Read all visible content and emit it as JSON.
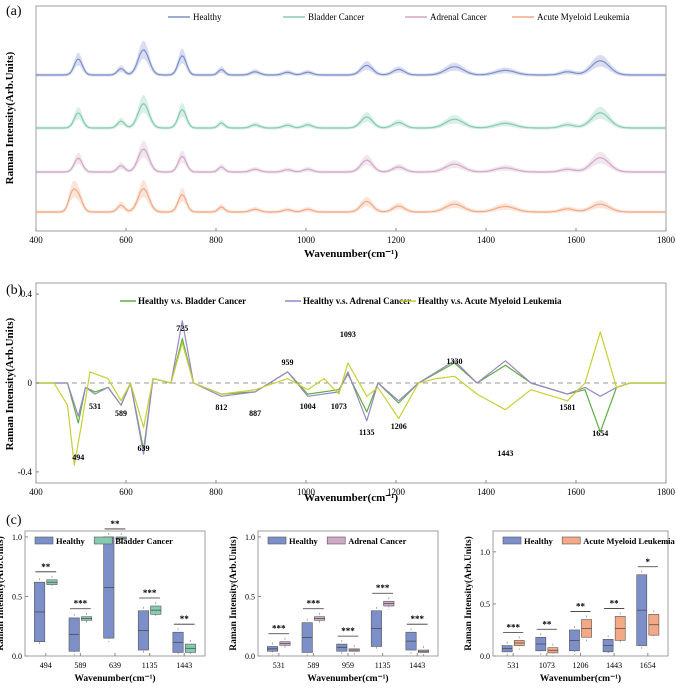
{
  "panel_labels": {
    "a": "(a)",
    "b": "(b)",
    "c": "(c)"
  },
  "colors": {
    "healthy": "#7d8fc9",
    "bladder": "#86cbb0",
    "adrenal": "#cfa9c6",
    "aml": "#f3a985",
    "v_bladder": "#5cae3e",
    "v_adrenal": "#9a86c4",
    "v_aml": "#c9cf35",
    "zero_line": "#999999"
  },
  "chart_data": [
    {
      "id": "a",
      "type": "line",
      "title": "",
      "xlabel": "Wavenumber(cm⁻¹)",
      "ylabel": "Raman Intensity(Arb.Units)",
      "xlim": [
        400,
        1800
      ],
      "xticks": [
        400,
        600,
        800,
        1000,
        1200,
        1400,
        1600,
        1800
      ],
      "stacked_offsets": true,
      "legend_position": "top",
      "series": [
        {
          "name": "Healthy",
          "color": "#7d8fc9",
          "baseline": 0.0,
          "peaks": [
            [
              494,
              0.35
            ],
            [
              589,
              0.14
            ],
            [
              639,
              0.55
            ],
            [
              725,
              0.42
            ],
            [
              812,
              0.12
            ],
            [
              887,
              0.07
            ],
            [
              959,
              0.06
            ],
            [
              1004,
              0.06
            ],
            [
              1135,
              0.21
            ],
            [
              1206,
              0.12
            ],
            [
              1330,
              0.18
            ],
            [
              1443,
              0.1
            ],
            [
              1581,
              0.07
            ],
            [
              1654,
              0.31
            ]
          ]
        },
        {
          "name": "Bladder Cancer",
          "color": "#86cbb0",
          "baseline": 0.0,
          "peaks": [
            [
              494,
              0.33
            ],
            [
              589,
              0.15
            ],
            [
              639,
              0.53
            ],
            [
              725,
              0.4
            ],
            [
              812,
              0.11
            ],
            [
              887,
              0.07
            ],
            [
              959,
              0.06
            ],
            [
              1004,
              0.07
            ],
            [
              1135,
              0.24
            ],
            [
              1206,
              0.12
            ],
            [
              1330,
              0.19
            ],
            [
              1443,
              0.1
            ],
            [
              1581,
              0.07
            ],
            [
              1654,
              0.33
            ]
          ]
        },
        {
          "name": "Adrenal Cancer",
          "color": "#cfa9c6",
          "baseline": 0.0,
          "peaks": [
            [
              494,
              0.3
            ],
            [
              589,
              0.14
            ],
            [
              639,
              0.5
            ],
            [
              725,
              0.34
            ],
            [
              812,
              0.11
            ],
            [
              887,
              0.06
            ],
            [
              959,
              0.05
            ],
            [
              1004,
              0.06
            ],
            [
              1135,
              0.26
            ],
            [
              1206,
              0.11
            ],
            [
              1330,
              0.17
            ],
            [
              1443,
              0.09
            ],
            [
              1581,
              0.06
            ],
            [
              1654,
              0.31
            ]
          ]
        },
        {
          "name": "Acute Myeloid Leukemia",
          "color": "#f3a985",
          "baseline": 0.0,
          "peaks": [
            [
              480,
              0.36
            ],
            [
              494,
              0.34
            ],
            [
              589,
              0.15
            ],
            [
              639,
              0.51
            ],
            [
              725,
              0.38
            ],
            [
              812,
              0.11
            ],
            [
              887,
              0.06
            ],
            [
              959,
              0.05
            ],
            [
              1004,
              0.06
            ],
            [
              1135,
              0.23
            ],
            [
              1206,
              0.13
            ],
            [
              1330,
              0.17
            ],
            [
              1443,
              0.12
            ],
            [
              1581,
              0.07
            ],
            [
              1654,
              0.17
            ]
          ]
        }
      ]
    },
    {
      "id": "b",
      "type": "line",
      "title": "",
      "xlabel": "Wavenumber(cm⁻¹)",
      "ylabel": "Raman Intensity(Arb.Units)",
      "xlim": [
        400,
        1800
      ],
      "ylim": [
        -0.45,
        0.45
      ],
      "xticks": [
        400,
        600,
        800,
        1000,
        1200,
        1400,
        1600,
        1800
      ],
      "yticks": [
        -0.4,
        0,
        0.4
      ],
      "ytick_labels": [
        "-0.4",
        "0",
        "0.4"
      ],
      "legend_position": "top",
      "series": [
        {
          "name": "Healthy v.s. Bladder Cancer",
          "color": "#5cae3e",
          "points": [
            [
              400,
              0.0
            ],
            [
              470,
              0.0
            ],
            [
              494,
              -0.18
            ],
            [
              510,
              -0.02
            ],
            [
              531,
              -0.04
            ],
            [
              560,
              -0.02
            ],
            [
              589,
              -0.1
            ],
            [
              610,
              0.0
            ],
            [
              639,
              -0.3
            ],
            [
              660,
              0.02
            ],
            [
              700,
              0.0
            ],
            [
              725,
              0.2
            ],
            [
              750,
              0.0
            ],
            [
              812,
              -0.05
            ],
            [
              887,
              -0.04
            ],
            [
              959,
              0.05
            ],
            [
              1004,
              -0.05
            ],
            [
              1073,
              -0.03
            ],
            [
              1093,
              0.04
            ],
            [
              1135,
              -0.13
            ],
            [
              1160,
              0.0
            ],
            [
              1206,
              -0.09
            ],
            [
              1250,
              0.0
            ],
            [
              1330,
              0.09
            ],
            [
              1380,
              0.0
            ],
            [
              1443,
              0.08
            ],
            [
              1500,
              0.0
            ],
            [
              1581,
              -0.05
            ],
            [
              1620,
              -0.03
            ],
            [
              1654,
              -0.22
            ],
            [
              1690,
              -0.02
            ],
            [
              1720,
              0.0
            ],
            [
              1800,
              0.0
            ]
          ]
        },
        {
          "name": "Healthy v.s. Adrenal Cancer",
          "color": "#9a86c4",
          "points": [
            [
              400,
              0.0
            ],
            [
              470,
              0.0
            ],
            [
              494,
              -0.15
            ],
            [
              510,
              -0.02
            ],
            [
              531,
              -0.05
            ],
            [
              560,
              -0.02
            ],
            [
              589,
              -0.1
            ],
            [
              610,
              0.0
            ],
            [
              639,
              -0.32
            ],
            [
              660,
              0.02
            ],
            [
              700,
              0.0
            ],
            [
              725,
              0.28
            ],
            [
              750,
              0.0
            ],
            [
              812,
              -0.06
            ],
            [
              887,
              -0.04
            ],
            [
              959,
              0.05
            ],
            [
              1004,
              -0.06
            ],
            [
              1073,
              -0.04
            ],
            [
              1093,
              0.05
            ],
            [
              1135,
              -0.17
            ],
            [
              1160,
              0.0
            ],
            [
              1206,
              -0.08
            ],
            [
              1250,
              0.0
            ],
            [
              1330,
              0.1
            ],
            [
              1380,
              0.0
            ],
            [
              1443,
              0.1
            ],
            [
              1500,
              0.0
            ],
            [
              1581,
              -0.05
            ],
            [
              1620,
              -0.02
            ],
            [
              1654,
              -0.06
            ],
            [
              1690,
              -0.02
            ],
            [
              1720,
              0.0
            ],
            [
              1800,
              0.0
            ]
          ]
        },
        {
          "name": "Healthy v.s. Acute Myeloid Leukemia",
          "color": "#c9cf35",
          "points": [
            [
              400,
              0.0
            ],
            [
              440,
              0.0
            ],
            [
              470,
              -0.1
            ],
            [
              485,
              -0.37
            ],
            [
              500,
              -0.2
            ],
            [
              520,
              0.05
            ],
            [
              560,
              0.02
            ],
            [
              589,
              -0.08
            ],
            [
              610,
              0.0
            ],
            [
              639,
              -0.2
            ],
            [
              660,
              0.02
            ],
            [
              700,
              0.0
            ],
            [
              725,
              0.18
            ],
            [
              750,
              0.0
            ],
            [
              812,
              -0.05
            ],
            [
              887,
              -0.03
            ],
            [
              959,
              0.02
            ],
            [
              1004,
              -0.03
            ],
            [
              1040,
              0.02
            ],
            [
              1073,
              -0.05
            ],
            [
              1093,
              0.09
            ],
            [
              1135,
              -0.06
            ],
            [
              1160,
              -0.02
            ],
            [
              1206,
              -0.16
            ],
            [
              1250,
              0.0
            ],
            [
              1290,
              0.02
            ],
            [
              1330,
              0.03
            ],
            [
              1380,
              -0.05
            ],
            [
              1443,
              -0.12
            ],
            [
              1500,
              -0.03
            ],
            [
              1581,
              -0.08
            ],
            [
              1620,
              0.0
            ],
            [
              1654,
              0.23
            ],
            [
              1690,
              -0.02
            ],
            [
              1720,
              0.0
            ],
            [
              1800,
              0.0
            ]
          ]
        }
      ],
      "annotations": [
        {
          "x": 494,
          "text": "494"
        },
        {
          "x": 531,
          "text": "531"
        },
        {
          "x": 589,
          "text": "589"
        },
        {
          "x": 639,
          "text": "639"
        },
        {
          "x": 725,
          "text": "725"
        },
        {
          "x": 812,
          "text": "812"
        },
        {
          "x": 887,
          "text": "887"
        },
        {
          "x": 959,
          "text": "959"
        },
        {
          "x": 1004,
          "text": "1004"
        },
        {
          "x": 1073,
          "text": "1073"
        },
        {
          "x": 1093,
          "text": "1093"
        },
        {
          "x": 1135,
          "text": "1135"
        },
        {
          "x": 1206,
          "text": "1206"
        },
        {
          "x": 1330,
          "text": "1330"
        },
        {
          "x": 1443,
          "text": "1443"
        },
        {
          "x": 1581,
          "text": "1581"
        },
        {
          "x": 1654,
          "text": "1654"
        }
      ]
    },
    {
      "id": "c1",
      "type": "box",
      "title": "",
      "xlabel": "Wavenumber(cm⁻¹)",
      "ylabel": "Raman Intensity(Arb.Units)",
      "ylim": [
        0,
        1.05
      ],
      "yticks": [
        0.0,
        0.5,
        1.0
      ],
      "ytick_labels": [
        "0.0",
        "0.5",
        "1.0"
      ],
      "categories": [
        "494",
        "589",
        "639",
        "1135",
        "1443"
      ],
      "significance": [
        "**",
        "***",
        "**",
        "***",
        "**"
      ],
      "series": [
        {
          "name": "Healthy",
          "color": "#7d8fc9",
          "boxes": [
            [
              0.12,
              0.62
            ],
            [
              0.04,
              0.32
            ],
            [
              0.15,
              1.0
            ],
            [
              0.05,
              0.38
            ],
            [
              0.03,
              0.2
            ]
          ]
        },
        {
          "name": "Bladder Cancer",
          "color": "#86cbb0",
          "boxes": [
            [
              0.6,
              0.64
            ],
            [
              0.3,
              0.33
            ],
            [
              0.98,
              1.0
            ],
            [
              0.35,
              0.42
            ],
            [
              0.03,
              0.1
            ]
          ]
        }
      ]
    },
    {
      "id": "c2",
      "type": "box",
      "title": "",
      "xlabel": "Wavenumber(cm⁻¹)",
      "ylabel": "Raman Intensity(Arb.Units)",
      "ylim": [
        0,
        1.05
      ],
      "yticks": [
        0.0,
        0.5,
        1.0
      ],
      "ytick_labels": [
        "0.0",
        "0.5",
        "1.0"
      ],
      "categories": [
        "531",
        "589",
        "959",
        "1135",
        "1443"
      ],
      "significance": [
        "***",
        "***",
        "***",
        "***",
        "***"
      ],
      "series": [
        {
          "name": "Healthy",
          "color": "#7d8fc9",
          "boxes": [
            [
              0.04,
              0.08
            ],
            [
              0.03,
              0.28
            ],
            [
              0.04,
              0.1
            ],
            [
              0.08,
              0.38
            ],
            [
              0.05,
              0.2
            ]
          ]
        },
        {
          "name": "Adrenal Cancer",
          "color": "#cfa9c6",
          "boxes": [
            [
              0.09,
              0.12
            ],
            [
              0.3,
              0.33
            ],
            [
              0.04,
              0.06
            ],
            [
              0.42,
              0.46
            ],
            [
              0.03,
              0.05
            ]
          ]
        }
      ]
    },
    {
      "id": "c3",
      "type": "box",
      "title": "",
      "xlabel": "Wavenumber(cm⁻¹)",
      "ylabel": "Raman Intensity(Arb.Units)",
      "ylim": [
        0,
        1.2
      ],
      "yticks": [
        0.0,
        0.5,
        1.0
      ],
      "ytick_labels": [
        "0.0",
        "0.5",
        "1.0"
      ],
      "categories": [
        "531",
        "1073",
        "1206",
        "1443",
        "1654"
      ],
      "significance": [
        "***",
        "**",
        "**",
        "**",
        "*"
      ],
      "series": [
        {
          "name": "Healthy",
          "color": "#7d8fc9",
          "boxes": [
            [
              0.04,
              0.1
            ],
            [
              0.05,
              0.18
            ],
            [
              0.05,
              0.25
            ],
            [
              0.04,
              0.16
            ],
            [
              0.1,
              0.78
            ]
          ]
        },
        {
          "name": "Acute Myeloid Leukemia",
          "color": "#f3a985",
          "boxes": [
            [
              0.1,
              0.15
            ],
            [
              0.03,
              0.08
            ],
            [
              0.18,
              0.35
            ],
            [
              0.15,
              0.38
            ],
            [
              0.2,
              0.4
            ]
          ]
        }
      ]
    }
  ]
}
